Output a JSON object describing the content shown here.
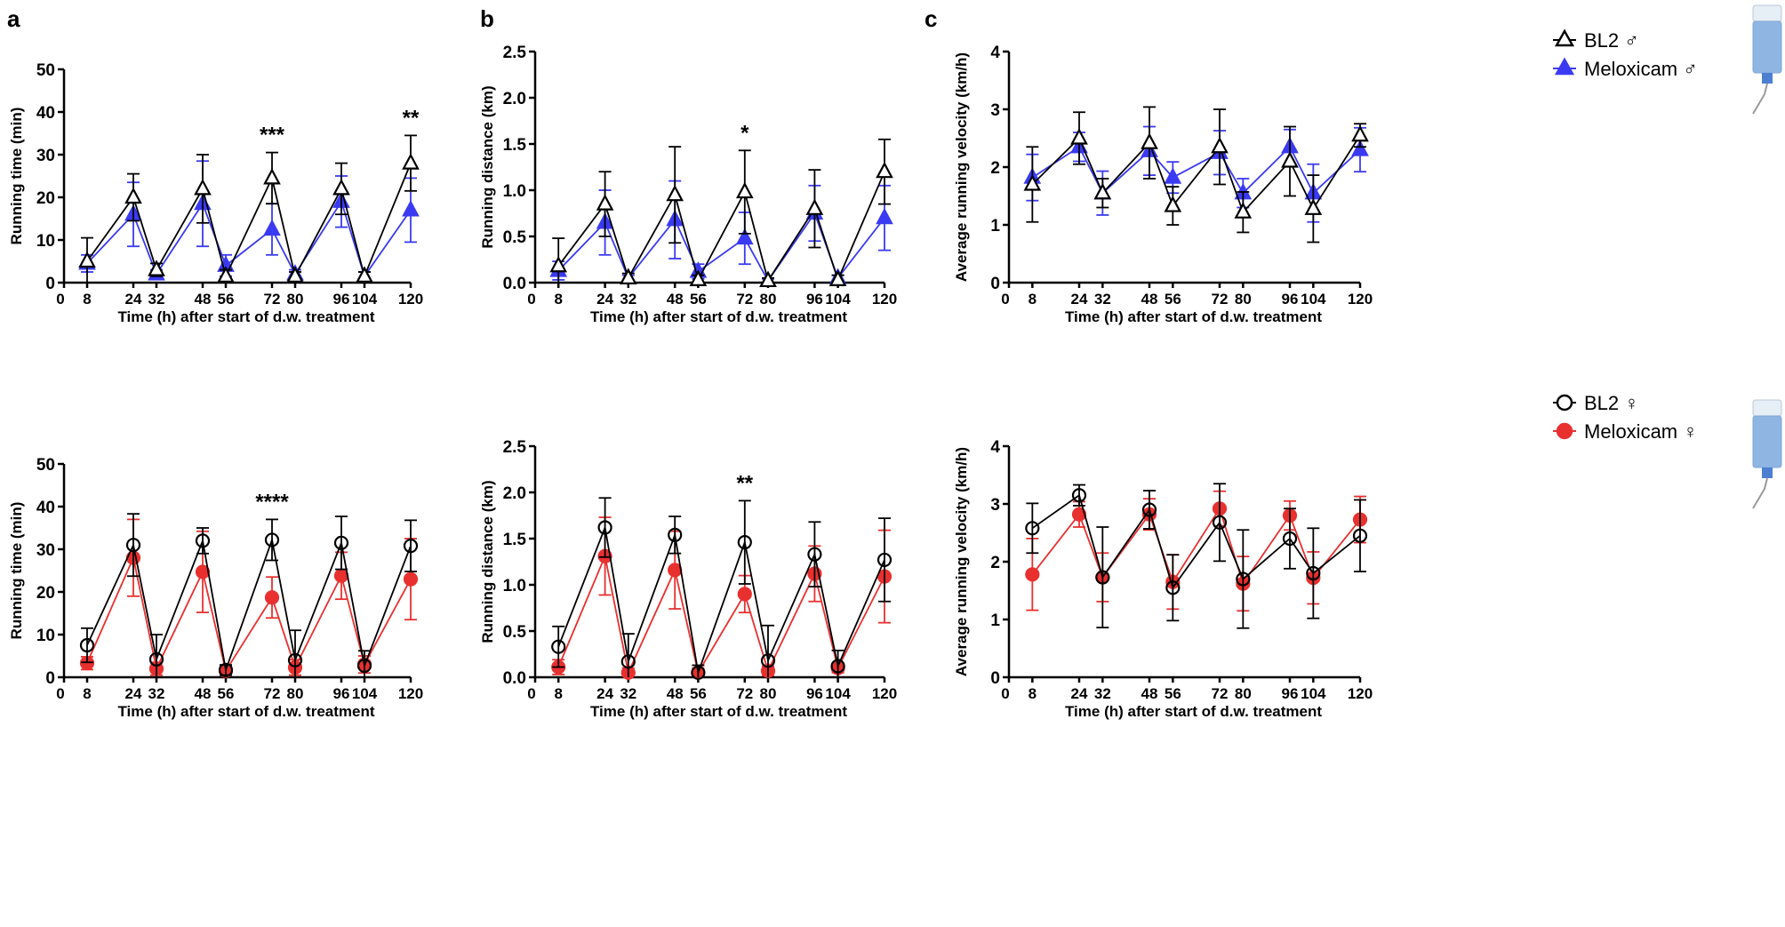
{
  "panel_labels": [
    "a",
    "b",
    "c"
  ],
  "legends": {
    "male": [
      "BL2 ♂",
      "Meloxicam ♂"
    ],
    "female": [
      "BL2 ♀",
      "Meloxicam ♀"
    ]
  },
  "colors": {
    "bl2": "#000000",
    "meloxicam_male": "#3a3af2",
    "meloxicam_female": "#e8302f"
  },
  "chart_data": [
    {
      "type": "line",
      "id": "a-male",
      "title": "",
      "xlabel": "Time (h) after start of d.w. treatment",
      "ylabel": "Running time (min)",
      "x": [
        8,
        24,
        32,
        48,
        56,
        72,
        80,
        96,
        104,
        120
      ],
      "xticks": [
        0,
        8,
        24,
        32,
        48,
        56,
        72,
        80,
        96,
        104,
        120
      ],
      "xlim": [
        0,
        120
      ],
      "ylim": [
        0,
        50
      ],
      "yticks": [
        "0",
        "10",
        "20",
        "30",
        "40",
        "50"
      ],
      "series": [
        {
          "name": "BL2 ♂",
          "marker": "open-triangle",
          "values": [
            5,
            20,
            3,
            22,
            1.5,
            24.5,
            1.5,
            22,
            1.5,
            28
          ],
          "err": [
            5.5,
            5.5,
            1.5,
            8,
            1.5,
            6,
            1,
            6,
            1,
            6.5
          ]
        },
        {
          "name": "Meloxicam ♂",
          "marker": "filled-triangle",
          "values": [
            4.5,
            16,
            2,
            18.5,
            4,
            12.5,
            2,
            19,
            1.5,
            17
          ],
          "err": [
            2,
            7.5,
            1,
            10,
            2.5,
            6,
            1,
            6,
            1,
            7.5
          ]
        }
      ],
      "annotations": [
        {
          "x": 72,
          "text": "***"
        },
        {
          "x": 120,
          "text": "**"
        }
      ]
    },
    {
      "type": "line",
      "id": "b-male",
      "title": "",
      "xlabel": "Time (h) after start of d.w. treatment",
      "ylabel": "Running distance (km)",
      "x": [
        8,
        24,
        32,
        48,
        56,
        72,
        80,
        96,
        104,
        120
      ],
      "xticks": [
        0,
        8,
        24,
        32,
        48,
        56,
        72,
        80,
        96,
        104,
        120
      ],
      "xlim": [
        0,
        120
      ],
      "ylim": [
        0,
        2.5
      ],
      "yticks": [
        "0.0",
        "0.5",
        "1.0",
        "1.5",
        "2.0",
        "2.5"
      ],
      "series": [
        {
          "name": "BL2 ♂",
          "marker": "open-triangle",
          "values": [
            0.18,
            0.85,
            0.05,
            0.95,
            0.03,
            0.98,
            0.02,
            0.8,
            0.03,
            1.2
          ],
          "err": [
            0.3,
            0.35,
            0.05,
            0.52,
            0.05,
            0.45,
            0.03,
            0.42,
            0.05,
            0.35
          ]
        },
        {
          "name": "Meloxicam ♂",
          "marker": "filled-triangle",
          "values": [
            0.13,
            0.65,
            0.05,
            0.68,
            0.12,
            0.48,
            0.02,
            0.75,
            0.05,
            0.7
          ],
          "err": [
            0.1,
            0.35,
            0.03,
            0.42,
            0.08,
            0.28,
            0.02,
            0.3,
            0.03,
            0.35
          ]
        }
      ],
      "annotations": [
        {
          "x": 72,
          "text": "*"
        }
      ]
    },
    {
      "type": "line",
      "id": "c-male",
      "title": "",
      "xlabel": "Time (h) after start of d.w. treatment",
      "ylabel": "Average running velocity (km/h)",
      "x": [
        8,
        24,
        32,
        48,
        56,
        72,
        80,
        96,
        104,
        120
      ],
      "xticks": [
        0,
        8,
        24,
        32,
        48,
        56,
        72,
        80,
        96,
        104,
        120
      ],
      "xlim": [
        0,
        120
      ],
      "ylim": [
        0,
        4
      ],
      "yticks": [
        "0",
        "1",
        "2",
        "3",
        "4"
      ],
      "series": [
        {
          "name": "BL2 ♂",
          "marker": "open-triangle",
          "values": [
            1.7,
            2.5,
            1.55,
            2.42,
            1.33,
            2.35,
            1.22,
            2.1,
            1.28,
            2.55
          ],
          "err": [
            0.65,
            0.45,
            0.25,
            0.62,
            0.33,
            0.65,
            0.35,
            0.6,
            0.58,
            0.2
          ]
        },
        {
          "name": "Meloxicam ♂",
          "marker": "filled-triangle",
          "values": [
            1.82,
            2.35,
            1.55,
            2.28,
            1.82,
            2.25,
            1.55,
            2.35,
            1.55,
            2.3
          ],
          "err": [
            0.4,
            0.25,
            0.38,
            0.42,
            0.27,
            0.38,
            0.25,
            0.3,
            0.5,
            0.38
          ]
        }
      ],
      "annotations": []
    },
    {
      "type": "line",
      "id": "a-female",
      "title": "",
      "xlabel": "Time (h) after start of d.w. treatment",
      "ylabel": "Running time (min)",
      "x": [
        8,
        24,
        32,
        48,
        56,
        72,
        80,
        96,
        104,
        120
      ],
      "xticks": [
        0,
        8,
        24,
        32,
        48,
        56,
        72,
        80,
        96,
        104,
        120
      ],
      "xlim": [
        0,
        120
      ],
      "ylim": [
        0,
        50
      ],
      "yticks": [
        "0",
        "10",
        "20",
        "30",
        "40",
        "50"
      ],
      "series": [
        {
          "name": "BL2 ♀",
          "marker": "open-circle",
          "values": [
            7.5,
            31,
            4.2,
            32,
            1.7,
            32.2,
            4,
            31.5,
            2.7,
            30.8
          ],
          "err": [
            4,
            7.3,
            5.8,
            3,
            1.2,
            4.8,
            7,
            6.2,
            3.5,
            6
          ]
        },
        {
          "name": "Meloxicam ♀",
          "marker": "filled-circle",
          "values": [
            3.3,
            28,
            2,
            24.7,
            1.5,
            18.7,
            2.3,
            23.8,
            3,
            23
          ],
          "err": [
            1.5,
            9,
            1.5,
            9.5,
            1,
            4.8,
            1.8,
            5.5,
            2,
            9.5
          ]
        }
      ],
      "annotations": [
        {
          "x": 72,
          "text": "****"
        }
      ]
    },
    {
      "type": "line",
      "id": "b-female",
      "title": "",
      "xlabel": "Time (h) after start of d.w. treatment",
      "ylabel": "Running distance (km)",
      "x": [
        8,
        24,
        32,
        48,
        56,
        72,
        80,
        96,
        104,
        120
      ],
      "xticks": [
        0,
        8,
        24,
        32,
        48,
        56,
        72,
        80,
        96,
        104,
        120
      ],
      "xlim": [
        0,
        120
      ],
      "ylim": [
        0,
        2.5
      ],
      "yticks": [
        "0.0",
        "0.5",
        "1.0",
        "1.5",
        "2.0",
        "2.5"
      ],
      "series": [
        {
          "name": "BL2 ♀",
          "marker": "open-circle",
          "values": [
            0.33,
            1.62,
            0.17,
            1.54,
            0.05,
            1.46,
            0.18,
            1.33,
            0.12,
            1.27
          ],
          "err": [
            0.22,
            0.32,
            0.3,
            0.2,
            0.08,
            0.45,
            0.38,
            0.35,
            0.17,
            0.45
          ]
        },
        {
          "name": "Meloxicam ♀",
          "marker": "filled-circle",
          "values": [
            0.11,
            1.31,
            0.05,
            1.16,
            0.05,
            0.9,
            0.07,
            1.12,
            0.1,
            1.09
          ],
          "err": [
            0.08,
            0.42,
            0.05,
            0.42,
            0.05,
            0.2,
            0.05,
            0.3,
            0.05,
            0.5
          ]
        }
      ],
      "annotations": [
        {
          "x": 72,
          "text": "**"
        }
      ]
    },
    {
      "type": "line",
      "id": "c-female",
      "title": "",
      "xlabel": "Time (h) after start of d.w. treatment",
      "ylabel": "Average running velocity (km/h)",
      "x": [
        8,
        24,
        32,
        48,
        56,
        72,
        80,
        96,
        104,
        120
      ],
      "xticks": [
        0,
        8,
        24,
        32,
        48,
        56,
        72,
        80,
        96,
        104,
        120
      ],
      "xlim": [
        0,
        120
      ],
      "ylim": [
        0,
        4
      ],
      "yticks": [
        "0",
        "1",
        "2",
        "3",
        "4"
      ],
      "series": [
        {
          "name": "BL2 ♀",
          "marker": "open-circle",
          "values": [
            2.58,
            3.15,
            1.73,
            2.9,
            1.55,
            2.68,
            1.7,
            2.4,
            1.8,
            2.45
          ],
          "err": [
            0.43,
            0.18,
            0.87,
            0.33,
            0.57,
            0.67,
            0.85,
            0.52,
            0.78,
            0.62
          ]
        },
        {
          "name": "Meloxicam ♀",
          "marker": "filled-circle",
          "values": [
            1.78,
            2.82,
            1.73,
            2.82,
            1.65,
            2.92,
            1.62,
            2.8,
            1.72,
            2.73
          ],
          "err": [
            0.62,
            0.22,
            0.42,
            0.27,
            0.47,
            0.3,
            0.47,
            0.25,
            0.45,
            0.4
          ]
        }
      ],
      "annotations": []
    }
  ]
}
